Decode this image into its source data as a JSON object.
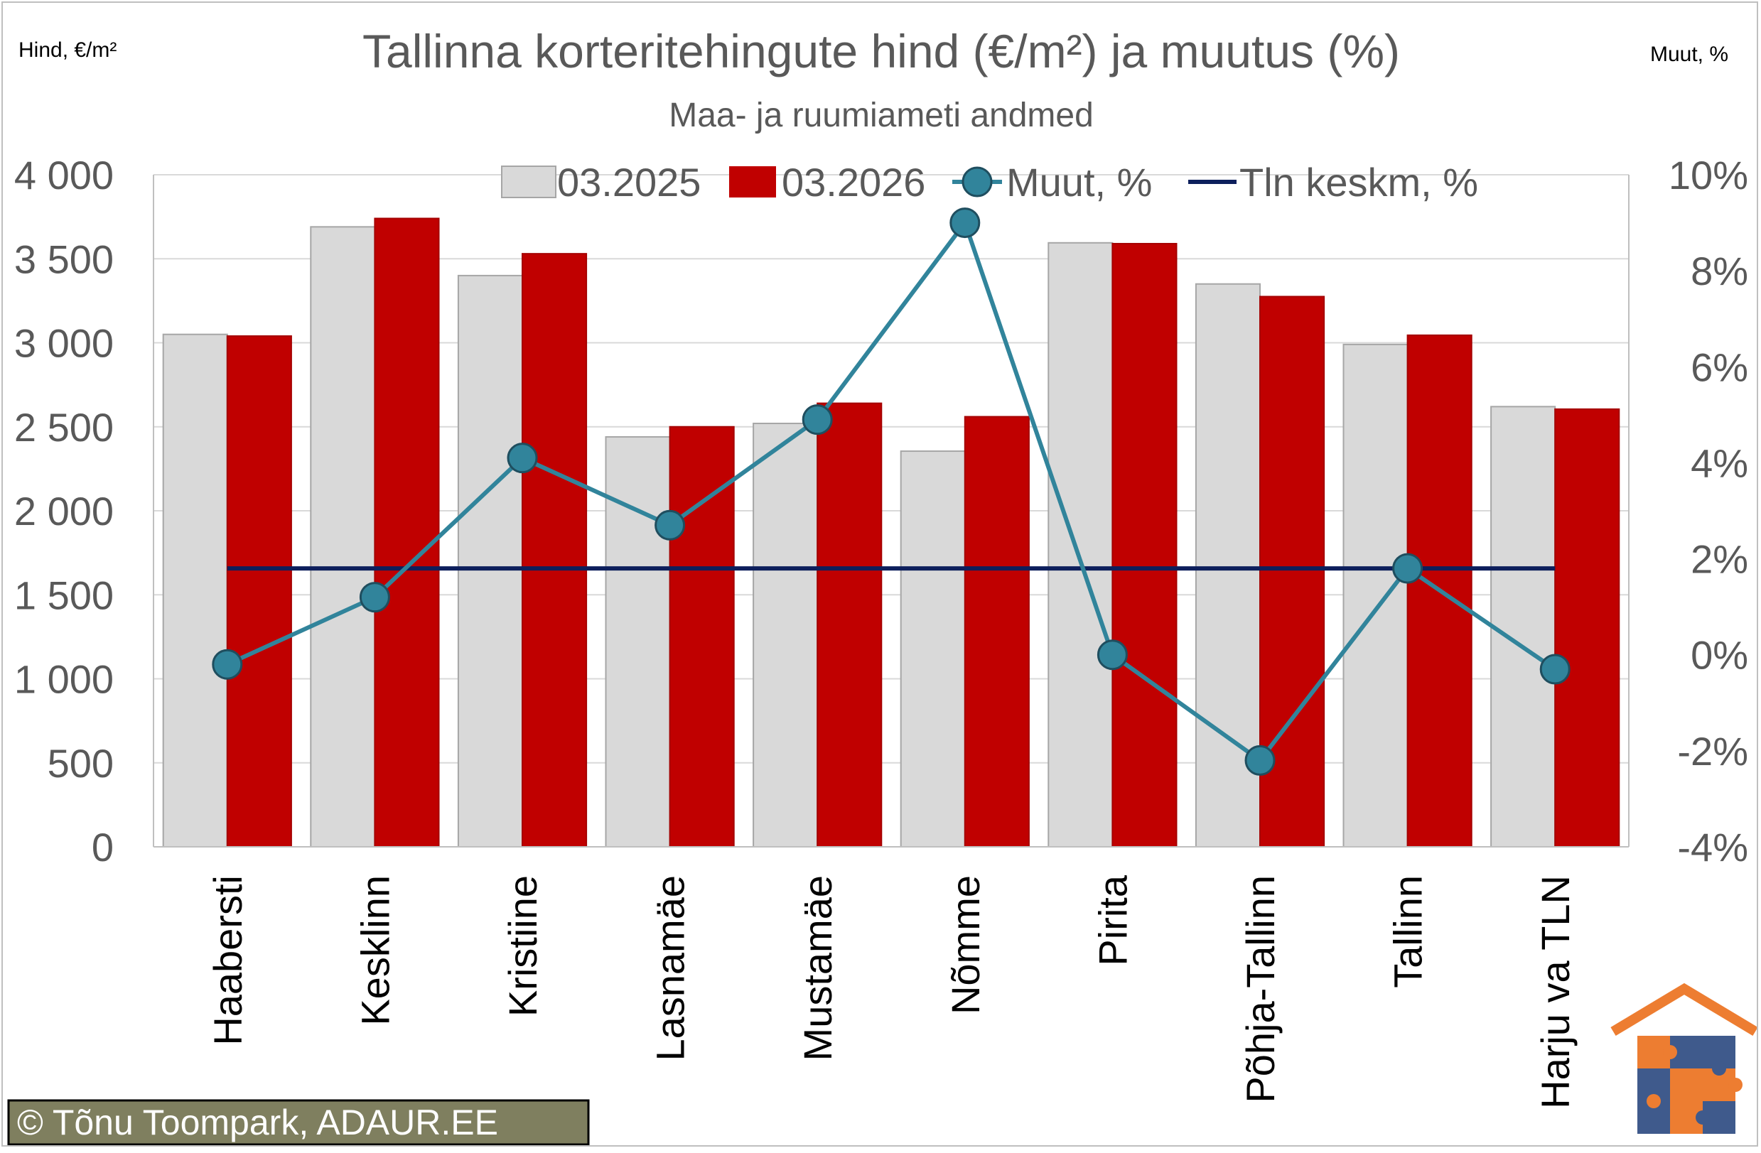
{
  "chart_data": {
    "type": "bar",
    "title": "Tallinna korteritehingute hind (€/m²) ja muutus (%)",
    "subtitle": "Maa- ja ruumiameti andmed",
    "ylabel": "Hind, €/m²",
    "y2label": "Muut, %",
    "categories": [
      "Haabersti",
      "Kesklinn",
      "Kristiine",
      "Lasnamäe",
      "Mustamäe",
      "Nõmme",
      "Pirita",
      "Põhja-Tallinn",
      "Tallinn",
      "Harju va TLN"
    ],
    "series": [
      {
        "name": "03.2025",
        "type": "bar",
        "axis": "left",
        "color": "#d9d9d9",
        "values": [
          3050,
          3690,
          3400,
          2440,
          2520,
          2355,
          3595,
          3350,
          2990,
          2620
        ]
      },
      {
        "name": "03.2026",
        "type": "bar",
        "axis": "left",
        "color": "#c00000",
        "values": [
          3040,
          3740,
          3530,
          2500,
          2640,
          2560,
          3590,
          3275,
          3045,
          2605
        ]
      },
      {
        "name": "Muut, %",
        "type": "line-markers",
        "axis": "right",
        "color": "#31849b",
        "values": [
          -0.2,
          1.2,
          4.1,
          2.7,
          4.9,
          9.0,
          0.0,
          -2.2,
          1.8,
          -0.3
        ]
      },
      {
        "name": "Tln keskm, %",
        "type": "line",
        "axis": "right",
        "color": "#0d1f5c",
        "values": [
          1.8,
          1.8,
          1.8,
          1.8,
          1.8,
          1.8,
          1.8,
          1.8,
          1.8,
          1.8
        ]
      }
    ],
    "ylim": [
      0,
      4000
    ],
    "yticks": [
      0,
      500,
      1000,
      1500,
      2000,
      2500,
      3000,
      3500,
      4000
    ],
    "ytick_labels": [
      "0",
      "500",
      "1 000",
      "1 500",
      "2 000",
      "2 500",
      "3 000",
      "3 500",
      "4 000"
    ],
    "y2lim": [
      -4,
      10
    ],
    "y2ticks": [
      -4,
      -2,
      0,
      2,
      4,
      6,
      8,
      10
    ],
    "y2tick_labels": [
      "-4%",
      "-2%",
      "0%",
      "2%",
      "4%",
      "6%",
      "8%",
      "10%"
    ],
    "grid": true,
    "legend": "top"
  },
  "credit": "© Tõnu Toompark, ADAUR.EE"
}
